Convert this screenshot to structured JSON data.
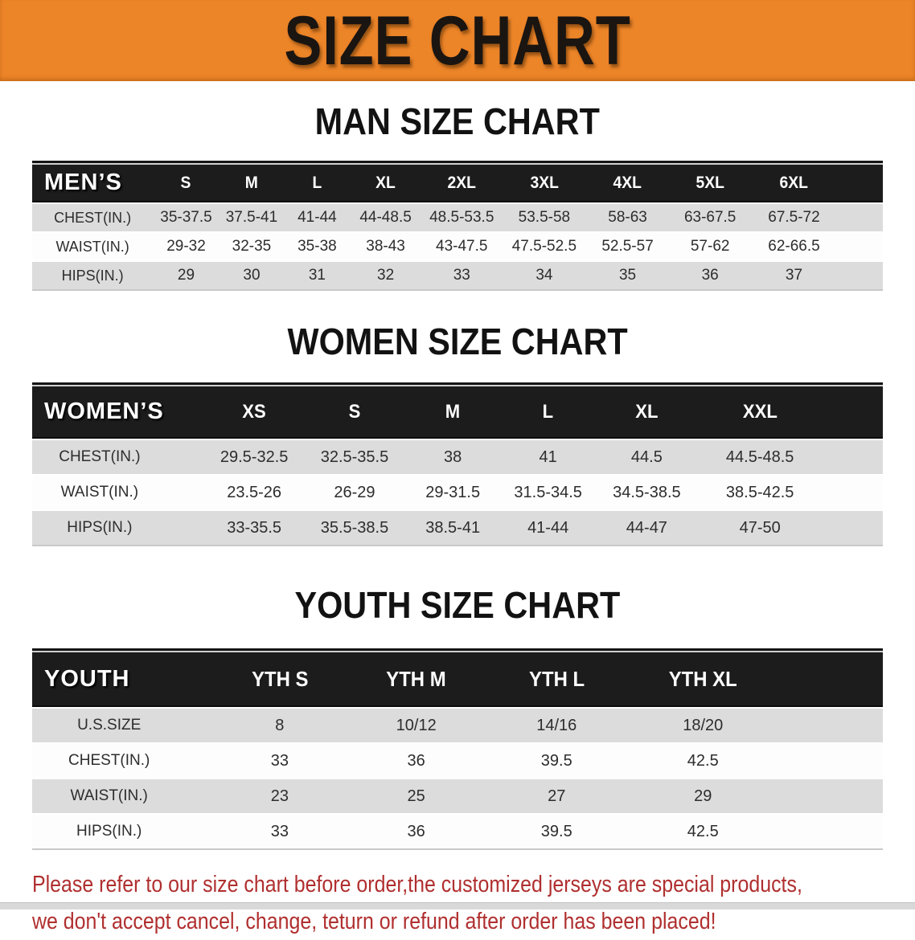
{
  "banner": {
    "title": "SIZE CHART",
    "bg_color": "#EC8428",
    "text_color": "#1A1511"
  },
  "colors": {
    "table_header_bg": "#1C1C1C",
    "table_header_text": "#FFFFFF",
    "row_gray": "#DCDCDC",
    "row_white": "#FDFDFD",
    "note_red": "#B02F2F"
  },
  "chart_data": [
    {
      "type": "table",
      "title": "MAN SIZE CHART",
      "columns": [
        "MEN’S",
        "S",
        "M",
        "L",
        "XL",
        "2XL",
        "3XL",
        "4XL",
        "5XL",
        "6XL"
      ],
      "rows": [
        {
          "label": "CHEST(IN.)",
          "values": [
            "35-37.5",
            "37.5-41",
            "41-44",
            "44-48.5",
            "48.5-53.5",
            "53.5-58",
            "58-63",
            "63-67.5",
            "67.5-72"
          ]
        },
        {
          "label": "WAIST(IN.)",
          "values": [
            "29-32",
            "32-35",
            "35-38",
            "38-43",
            "43-47.5",
            "47.5-52.5",
            "52.5-57",
            "57-62",
            "62-66.5"
          ]
        },
        {
          "label": "HIPS(IN.)",
          "values": [
            "29",
            "30",
            "31",
            "32",
            "33",
            "34",
            "35",
            "36",
            "37"
          ]
        }
      ]
    },
    {
      "type": "table",
      "title": "WOMEN SIZE CHART",
      "columns": [
        "WOMEN’S",
        "XS",
        "S",
        "M",
        "L",
        "XL",
        "XXL"
      ],
      "rows": [
        {
          "label": "CHEST(IN.)",
          "values": [
            "29.5-32.5",
            "32.5-35.5",
            "38",
            "41",
            "44.5",
            "44.5-48.5"
          ]
        },
        {
          "label": "WAIST(IN.)",
          "values": [
            "23.5-26",
            "26-29",
            "29-31.5",
            "31.5-34.5",
            "34.5-38.5",
            "38.5-42.5"
          ]
        },
        {
          "label": "HIPS(IN.)",
          "values": [
            "33-35.5",
            "35.5-38.5",
            "38.5-41",
            "41-44",
            "44-47",
            "47-50"
          ]
        }
      ]
    },
    {
      "type": "table",
      "title": "YOUTH SIZE CHART",
      "columns": [
        "YOUTH",
        "YTH S",
        "YTH M",
        "YTH L",
        "YTH XL"
      ],
      "rows": [
        {
          "label": "U.S.SIZE",
          "values": [
            "8",
            "10/12",
            "14/16",
            "18/20"
          ]
        },
        {
          "label": "CHEST(IN.)",
          "values": [
            "33",
            "36",
            "39.5",
            "42.5"
          ]
        },
        {
          "label": "WAIST(IN.)",
          "values": [
            "23",
            "25",
            "27",
            "29"
          ]
        },
        {
          "label": "HIPS(IN.)",
          "values": [
            "33",
            "36",
            "39.5",
            "42.5"
          ]
        }
      ]
    }
  ],
  "note": {
    "line1": "Please refer to our size chart before order,the customized jerseys are special products,",
    "line2": "we don't accept cancel, change, teturn or refund after order has been placed!"
  }
}
